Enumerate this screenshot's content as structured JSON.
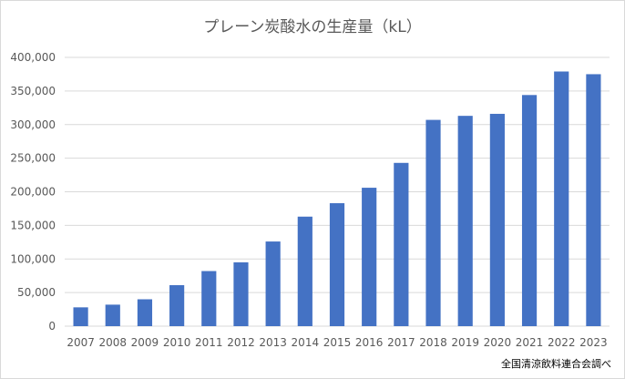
{
  "chart_data": {
    "type": "bar",
    "title": "プレーン炭酸水の生産量（kL）",
    "categories": [
      "2007",
      "2008",
      "2009",
      "2010",
      "2011",
      "2012",
      "2013",
      "2014",
      "2015",
      "2016",
      "2017",
      "2018",
      "2019",
      "2020",
      "2021",
      "2022",
      "2023"
    ],
    "series": [
      {
        "values": [
          28000,
          32000,
          40000,
          61000,
          82000,
          95000,
          126000,
          163000,
          183000,
          206000,
          243000,
          307000,
          313000,
          316000,
          344000,
          379000,
          375000
        ]
      }
    ],
    "ylim": [
      0,
      400000
    ],
    "yticks": [
      "0",
      "50,000",
      "100,000",
      "150,000",
      "200,000",
      "250,000",
      "300,000",
      "350,000",
      "400,000"
    ],
    "grid": true,
    "bar_color": "#4472C4",
    "source": "全国清涼飲料連合会調べ"
  }
}
